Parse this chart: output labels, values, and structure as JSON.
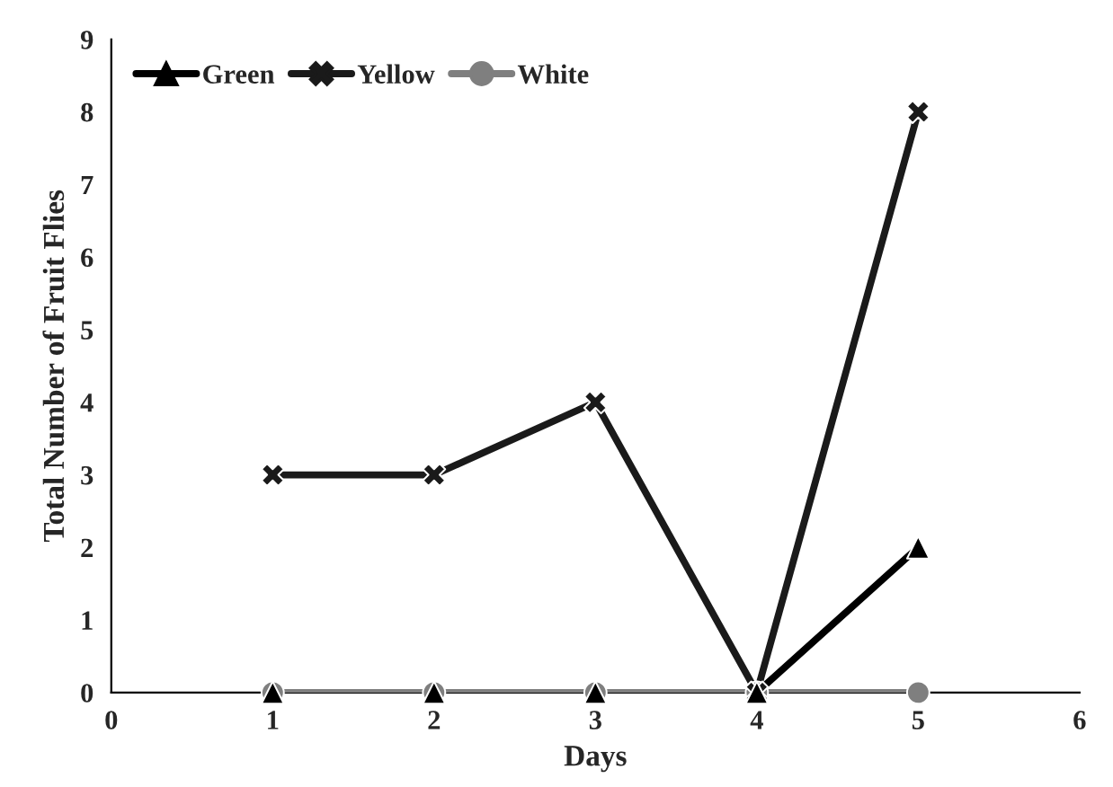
{
  "chart_data": {
    "type": "line",
    "xlabel": "Days",
    "ylabel": "Total Number of Fruit Flies",
    "x": [
      1,
      2,
      3,
      4,
      5
    ],
    "series": [
      {
        "name": "Green",
        "color": "#000000",
        "marker": "triangle",
        "values": [
          0,
          0,
          0,
          0,
          2
        ]
      },
      {
        "name": "Yellow",
        "color": "#1a1a1a",
        "marker": "cross",
        "values": [
          3,
          3,
          4,
          0,
          8
        ]
      },
      {
        "name": "White",
        "color": "#7f7f7f",
        "marker": "circle",
        "values": [
          0,
          0,
          0,
          0,
          0
        ]
      }
    ],
    "xlim": [
      0,
      6
    ],
    "xticks": [
      0,
      1,
      2,
      3,
      4,
      5,
      6
    ],
    "ylim": [
      0,
      9
    ],
    "yticks": [
      0,
      1,
      2,
      3,
      4,
      5,
      6,
      7,
      8,
      9
    ],
    "grid": false,
    "legend": "top left",
    "line_style": "solid"
  }
}
